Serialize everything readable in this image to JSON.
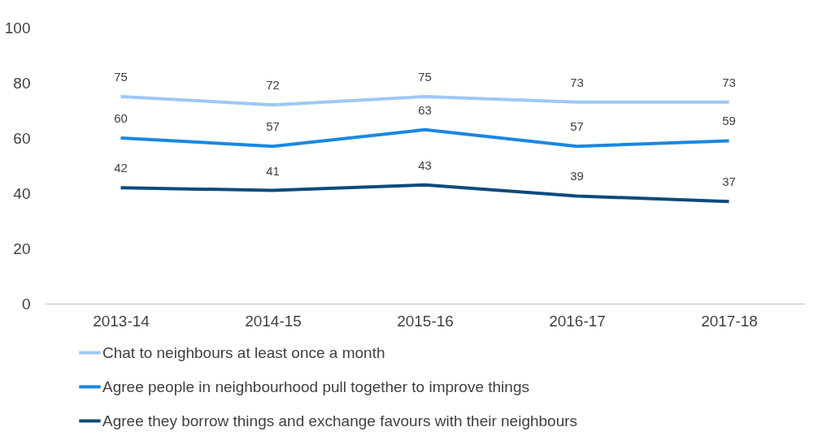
{
  "chart_data": {
    "type": "line",
    "categories": [
      "2013-14",
      "2014-15",
      "2015-16",
      "2016-17",
      "2017-18"
    ],
    "series": [
      {
        "name": "Chat to neighbours at least once a month",
        "color": "#9dc8f7",
        "values": [
          75,
          72,
          75,
          73,
          73
        ]
      },
      {
        "name": "Agree people in neighbourhood pull together to improve things",
        "color": "#1a88e0",
        "values": [
          60,
          57,
          63,
          57,
          59
        ]
      },
      {
        "name": "Agree they borrow things and exchange favours with their neighbours",
        "color": "#0d4a7c",
        "values": [
          42,
          41,
          43,
          39,
          37
        ]
      }
    ],
    "ylim": [
      0,
      100
    ],
    "yticks": [
      0,
      20,
      40,
      60,
      80,
      100
    ],
    "data_labels": true,
    "grid": false,
    "legend": "bottom",
    "marker": "none",
    "line_style": "solid"
  }
}
